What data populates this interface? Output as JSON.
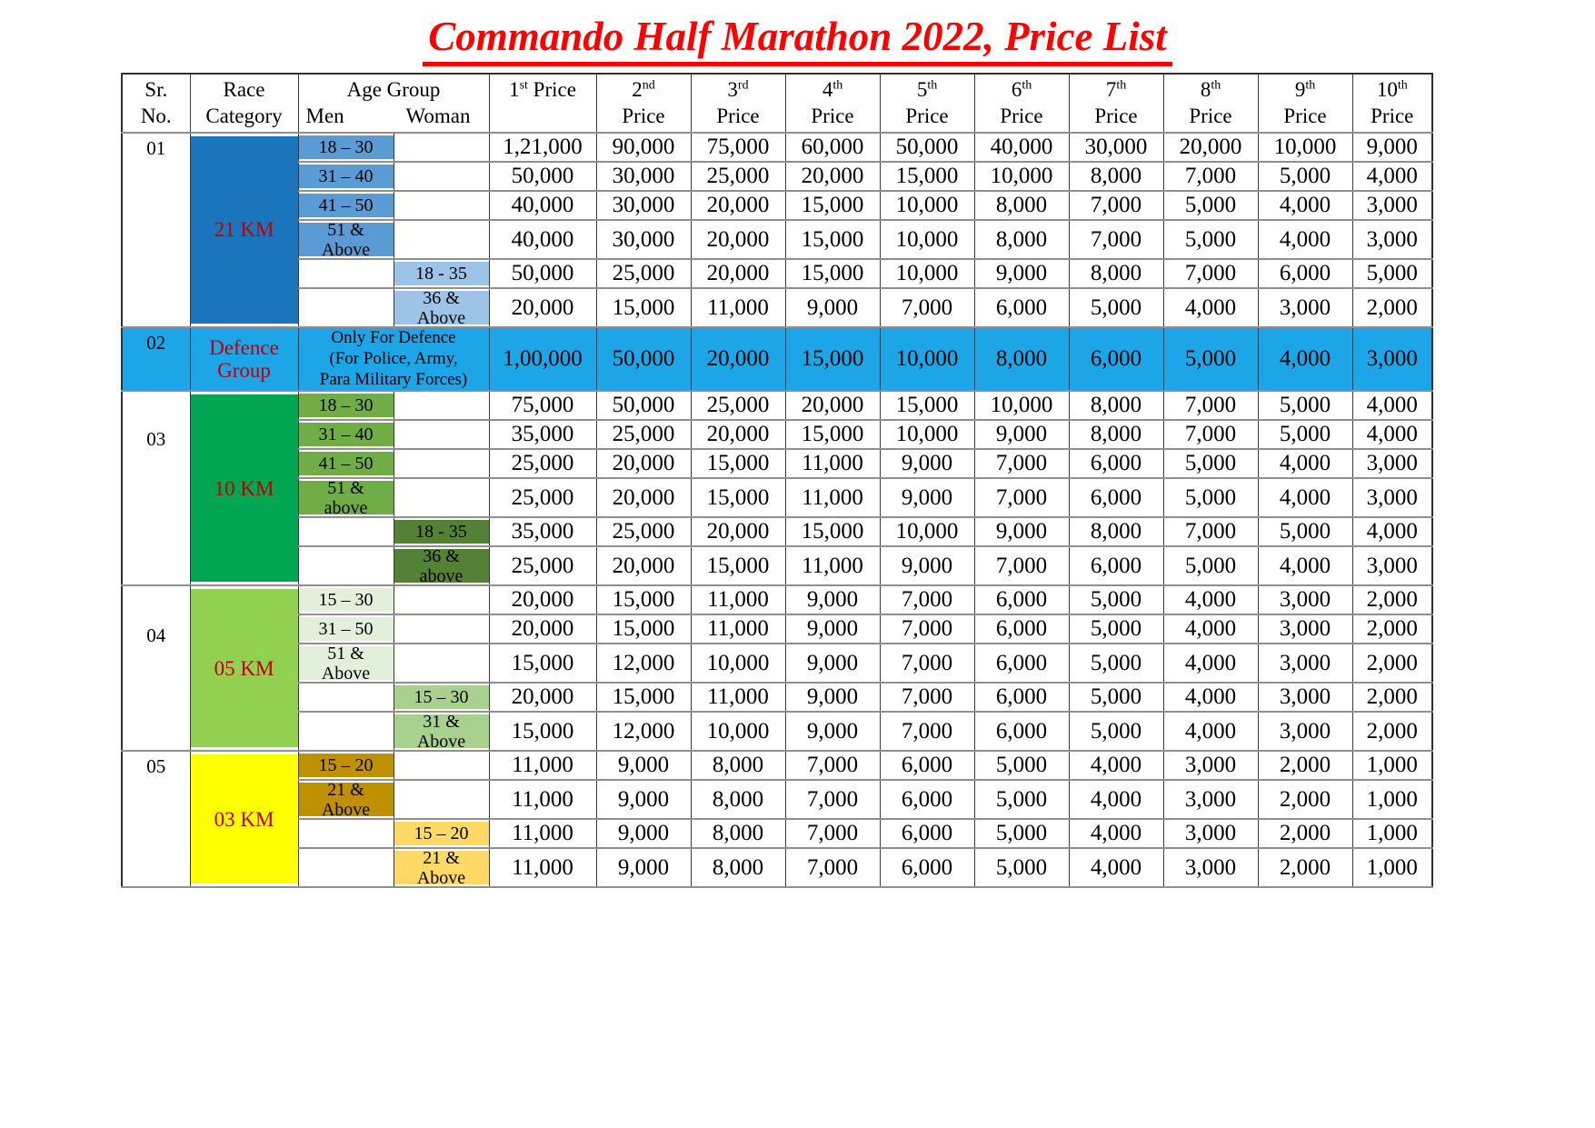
{
  "title": "Commando Half Marathon 2022, Price List",
  "colors": {
    "title_red": "#FF0000",
    "category_label_red": "#C00000",
    "border_dark": "#303030",
    "border_gray": "#8f8f8f"
  },
  "table": {
    "header": {
      "sr_line1": "Sr.",
      "sr_line2": "No.",
      "race_line1": "Race",
      "race_line2": "Category",
      "age_group": "Age Group",
      "men": "Men",
      "woman": "Woman",
      "price_word": "Price",
      "price_ordinals": [
        {
          "n": "1",
          "suffix": "st"
        },
        {
          "n": "2",
          "suffix": "nd"
        },
        {
          "n": "3",
          "suffix": "rd"
        },
        {
          "n": "4",
          "suffix": "th"
        },
        {
          "n": "5",
          "suffix": "th"
        },
        {
          "n": "6",
          "suffix": "th"
        },
        {
          "n": "7",
          "suffix": "th"
        },
        {
          "n": "8",
          "suffix": "th"
        },
        {
          "n": "9",
          "suffix": "th"
        },
        {
          "n": "10",
          "suffix": "th"
        }
      ]
    },
    "sections": [
      {
        "sr": "01",
        "category": "21 KM",
        "colors": {
          "cat_bg": "#1B75BC",
          "men_bg": "#5B9BD5",
          "woman_bg": "#9DC3E6",
          "row_bg": "#FFFFFF"
        },
        "rows": [
          {
            "col": "men",
            "age": "18 – 30",
            "prices": [
              "1,21,000",
              "90,000",
              "75,000",
              "60,000",
              "50,000",
              "40,000",
              "30,000",
              "20,000",
              "10,000",
              "9,000"
            ]
          },
          {
            "col": "men",
            "age": "31 – 40",
            "prices": [
              "50,000",
              "30,000",
              "25,000",
              "20,000",
              "15,000",
              "10,000",
              "8,000",
              "7,000",
              "5,000",
              "4,000"
            ]
          },
          {
            "col": "men",
            "age": "41 – 50",
            "prices": [
              "40,000",
              "30,000",
              "20,000",
              "15,000",
              "10,000",
              "8,000",
              "7,000",
              "5,000",
              "4,000",
              "3,000"
            ]
          },
          {
            "col": "men",
            "age": "51 &\nAbove",
            "prices": [
              "40,000",
              "30,000",
              "20,000",
              "15,000",
              "10,000",
              "8,000",
              "7,000",
              "5,000",
              "4,000",
              "3,000"
            ]
          },
          {
            "col": "woman",
            "age": "18 - 35",
            "prices": [
              "50,000",
              "25,000",
              "20,000",
              "15,000",
              "10,000",
              "9,000",
              "8,000",
              "7,000",
              "6,000",
              "5,000"
            ]
          },
          {
            "col": "woman",
            "age": "36 &\nAbove",
            "prices": [
              "20,000",
              "15,000",
              "11,000",
              "9,000",
              "7,000",
              "6,000",
              "5,000",
              "4,000",
              "3,000",
              "2,000"
            ]
          }
        ]
      },
      {
        "sr": "02",
        "category": "Defence\nGroup",
        "defence_note": "Only For Defence\n(For Police, Army,\nPara Military Forces)",
        "colors": {
          "cat_bg": "#1CA6E8",
          "men_bg": "#1CA6E8",
          "woman_bg": "#1CA6E8",
          "row_bg": "#1CA6E8"
        },
        "rows": [
          {
            "col": "both",
            "age": "",
            "prices": [
              "1,00,000",
              "50,000",
              "20,000",
              "15,000",
              "10,000",
              "8,000",
              "6,000",
              "5,000",
              "4,000",
              "3,000"
            ]
          }
        ]
      },
      {
        "sr": "03",
        "category": "10 KM",
        "colors": {
          "cat_bg": "#00A651",
          "men_bg": "#70AD47",
          "woman_bg": "#538135",
          "row_bg": "#FFFFFF"
        },
        "rows": [
          {
            "col": "men",
            "age": "18 – 30",
            "prices": [
              "75,000",
              "50,000",
              "25,000",
              "20,000",
              "15,000",
              "10,000",
              "8,000",
              "7,000",
              "5,000",
              "4,000"
            ]
          },
          {
            "col": "men",
            "age": "31 – 40",
            "prices": [
              "35,000",
              "25,000",
              "20,000",
              "15,000",
              "10,000",
              "9,000",
              "8,000",
              "7,000",
              "5,000",
              "4,000"
            ]
          },
          {
            "col": "men",
            "age": "41 – 50",
            "prices": [
              "25,000",
              "20,000",
              "15,000",
              "11,000",
              "9,000",
              "7,000",
              "6,000",
              "5,000",
              "4,000",
              "3,000"
            ]
          },
          {
            "col": "men",
            "age": "51 &\nabove",
            "prices": [
              "25,000",
              "20,000",
              "15,000",
              "11,000",
              "9,000",
              "7,000",
              "6,000",
              "5,000",
              "4,000",
              "3,000"
            ]
          },
          {
            "col": "woman",
            "age": "18 - 35",
            "prices": [
              "35,000",
              "25,000",
              "20,000",
              "15,000",
              "10,000",
              "9,000",
              "8,000",
              "7,000",
              "5,000",
              "4,000"
            ]
          },
          {
            "col": "woman",
            "age": "36 &\nabove",
            "prices": [
              "25,000",
              "20,000",
              "15,000",
              "11,000",
              "9,000",
              "7,000",
              "6,000",
              "5,000",
              "4,000",
              "3,000"
            ]
          }
        ]
      },
      {
        "sr": "04",
        "category": "05 KM",
        "colors": {
          "cat_bg": "#92D050",
          "men_bg": "#E2EFDA",
          "woman_bg": "#A9D18E",
          "row_bg": "#FFFFFF"
        },
        "rows": [
          {
            "col": "men",
            "age": "15 – 30",
            "prices": [
              "20,000",
              "15,000",
              "11,000",
              "9,000",
              "7,000",
              "6,000",
              "5,000",
              "4,000",
              "3,000",
              "2,000"
            ]
          },
          {
            "col": "men",
            "age": "31 – 50",
            "prices": [
              "20,000",
              "15,000",
              "11,000",
              "9,000",
              "7,000",
              "6,000",
              "5,000",
              "4,000",
              "3,000",
              "2,000"
            ]
          },
          {
            "col": "men",
            "age": "51 &\nAbove",
            "prices": [
              "15,000",
              "12,000",
              "10,000",
              "9,000",
              "7,000",
              "6,000",
              "5,000",
              "4,000",
              "3,000",
              "2,000"
            ]
          },
          {
            "col": "woman",
            "age": "15 – 30",
            "prices": [
              "20,000",
              "15,000",
              "11,000",
              "9,000",
              "7,000",
              "6,000",
              "5,000",
              "4,000",
              "3,000",
              "2,000"
            ]
          },
          {
            "col": "woman",
            "age": "31 &\nAbove",
            "prices": [
              "15,000",
              "12,000",
              "10,000",
              "9,000",
              "7,000",
              "6,000",
              "5,000",
              "4,000",
              "3,000",
              "2,000"
            ]
          }
        ]
      },
      {
        "sr": "05",
        "category": "03 KM",
        "colors": {
          "cat_bg": "#FFFF00",
          "men_bg": "#BF9000",
          "woman_bg": "#FFD966",
          "row_bg": "#FFFFFF"
        },
        "rows": [
          {
            "col": "men",
            "age": "15 – 20",
            "prices": [
              "11,000",
              "9,000",
              "8,000",
              "7,000",
              "6,000",
              "5,000",
              "4,000",
              "3,000",
              "2,000",
              "1,000"
            ]
          },
          {
            "col": "men",
            "age": "21 &\nAbove",
            "prices": [
              "11,000",
              "9,000",
              "8,000",
              "7,000",
              "6,000",
              "5,000",
              "4,000",
              "3,000",
              "2,000",
              "1,000"
            ]
          },
          {
            "col": "woman",
            "age": "15 – 20",
            "prices": [
              "11,000",
              "9,000",
              "8,000",
              "7,000",
              "6,000",
              "5,000",
              "4,000",
              "3,000",
              "2,000",
              "1,000"
            ]
          },
          {
            "col": "woman",
            "age": "21 &\nAbove",
            "prices": [
              "11,000",
              "9,000",
              "8,000",
              "7,000",
              "6,000",
              "5,000",
              "4,000",
              "3,000",
              "2,000",
              "1,000"
            ]
          }
        ]
      }
    ]
  }
}
